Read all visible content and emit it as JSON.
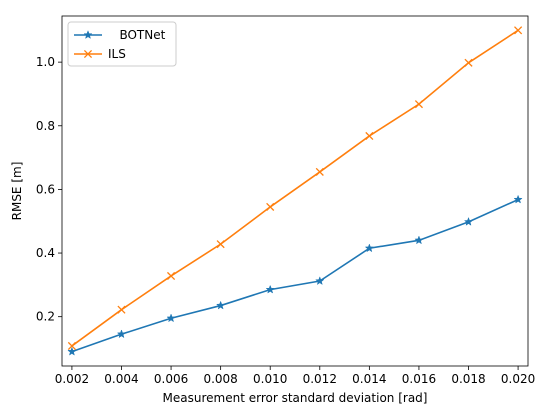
{
  "chart_data": {
    "type": "line",
    "xlabel": "Measurement error standard deviation [rad]",
    "ylabel": "RMSE [m]",
    "xlim": [
      0.0016,
      0.0204
    ],
    "ylim": [
      0.045,
      1.145
    ],
    "x_ticks": [
      "0.002",
      "0.004",
      "0.006",
      "0.008",
      "0.010",
      "0.012",
      "0.014",
      "0.016",
      "0.018",
      "0.020"
    ],
    "y_ticks": [
      "0.2",
      "0.4",
      "0.6",
      "0.8",
      "1.0"
    ],
    "x": [
      0.002,
      0.004,
      0.006,
      0.008,
      0.01,
      0.012,
      0.014,
      0.016,
      0.018,
      0.02
    ],
    "grid": false,
    "legend_position": "top-left",
    "series": [
      {
        "name": "   BOTNet",
        "color": "#1f77b4",
        "marker": "star",
        "values": [
          0.09,
          0.145,
          0.195,
          0.235,
          0.285,
          0.312,
          0.415,
          0.44,
          0.498,
          0.568
        ]
      },
      {
        "name": "ILS",
        "color": "#ff7f0e",
        "marker": "x",
        "values": [
          0.108,
          0.222,
          0.328,
          0.428,
          0.545,
          0.655,
          0.768,
          0.868,
          0.998,
          1.1
        ]
      }
    ]
  }
}
